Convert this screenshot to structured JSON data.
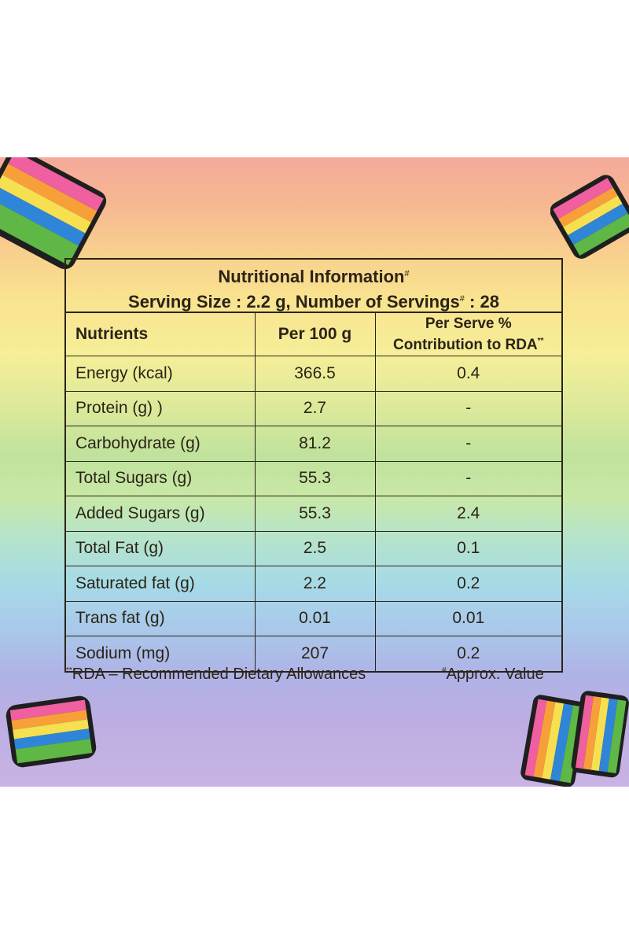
{
  "nutrition_panel": {
    "title": "Nutritional Information",
    "title_marker": "#",
    "serving_line": "Serving Size : 2.2 g, Number of Servings",
    "serving_marker": "#",
    "serving_count": ": 28",
    "headers": {
      "nutrients": "Nutrients",
      "per100": "Per 100 g",
      "rda_line1": "Per Serve %",
      "rda_line2": "Contribution to RDA",
      "rda_marker": "**"
    },
    "rows": [
      {
        "name": "Energy (kcal)",
        "per100": "366.5",
        "rda": "0.4"
      },
      {
        "name": "Protein (g) )",
        "per100": "2.7",
        "rda": "-"
      },
      {
        "name": "Carbohydrate (g)",
        "per100": "81.2",
        "rda": "-"
      },
      {
        "name": "Total Sugars (g)",
        "per100": "55.3",
        "rda": "-"
      },
      {
        "name": "Added Sugars (g)",
        "per100": "55.3",
        "rda": "2.4"
      },
      {
        "name": "Total Fat (g)",
        "per100": "2.5",
        "rda": "0.1"
      },
      {
        "name": "Saturated fat (g)",
        "per100": "2.2",
        "rda": "0.2"
      },
      {
        "name": "Trans fat (g)",
        "per100": "0.01",
        "rda": "0.01"
      },
      {
        "name": "Sodium (mg)",
        "per100": "207",
        "rda": "0.2"
      }
    ],
    "footnote_left_marker": "**",
    "footnote_left": "RDA – Recommended Dietary Allowances",
    "footnote_right_marker": "#",
    "footnote_right": "Approx. Value"
  }
}
